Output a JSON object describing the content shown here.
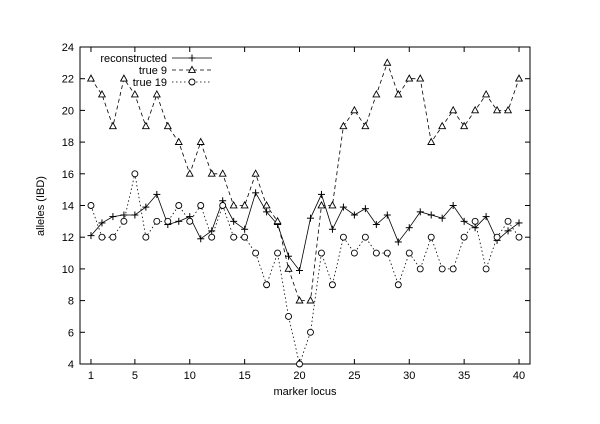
{
  "chart_data": {
    "type": "line",
    "xlabel": "marker locus",
    "ylabel": "alleles (IBD)",
    "xlim": [
      0,
      41
    ],
    "ylim": [
      4,
      24
    ],
    "xticks": [
      1,
      5,
      10,
      15,
      20,
      25,
      30,
      35,
      40
    ],
    "yticks": [
      4,
      6,
      8,
      10,
      12,
      14,
      16,
      18,
      20,
      22,
      24
    ],
    "legend_position": "top-left",
    "grid": false,
    "x": [
      1,
      2,
      3,
      4,
      5,
      6,
      7,
      8,
      9,
      10,
      11,
      12,
      13,
      14,
      15,
      16,
      17,
      18,
      19,
      20,
      21,
      22,
      23,
      24,
      25,
      26,
      27,
      28,
      29,
      30,
      31,
      32,
      33,
      34,
      35,
      36,
      37,
      38,
      39,
      40
    ],
    "series": [
      {
        "name": "reconstructed",
        "marker": "plus",
        "dash": "solid",
        "values": [
          12.1,
          12.9,
          13.3,
          13.4,
          13.4,
          13.9,
          14.7,
          12.8,
          13.0,
          13.3,
          11.9,
          12.4,
          14.3,
          13.0,
          12.5,
          14.8,
          13.6,
          12.8,
          10.8,
          9.9,
          13.2,
          14.7,
          12.5,
          13.9,
          13.4,
          13.8,
          12.8,
          13.4,
          11.7,
          12.6,
          13.6,
          13.4,
          13.2,
          14.0,
          13.0,
          12.6,
          13.3,
          11.8,
          12.4,
          12.9
        ]
      },
      {
        "name": "true 9",
        "marker": "triangle",
        "dash": "dashed",
        "values": [
          22,
          21,
          19,
          22,
          21,
          19,
          21,
          19,
          18,
          16,
          18,
          16,
          16,
          14,
          14,
          16,
          14,
          13,
          10,
          8,
          8,
          14,
          14,
          19,
          20,
          19,
          21,
          23,
          21,
          22,
          22,
          18,
          19,
          20,
          19,
          20,
          21,
          20,
          20,
          22
        ]
      },
      {
        "name": "true 19",
        "marker": "circle",
        "dash": "dotted",
        "values": [
          14,
          12,
          12,
          13,
          16,
          12,
          13,
          13,
          14,
          13,
          14,
          12,
          14,
          12,
          12,
          11,
          9,
          11,
          7,
          4,
          6,
          11,
          9,
          12,
          11,
          12,
          11,
          11,
          9,
          11,
          10,
          12,
          10,
          10,
          12,
          13,
          10,
          12,
          13,
          12
        ]
      }
    ]
  }
}
